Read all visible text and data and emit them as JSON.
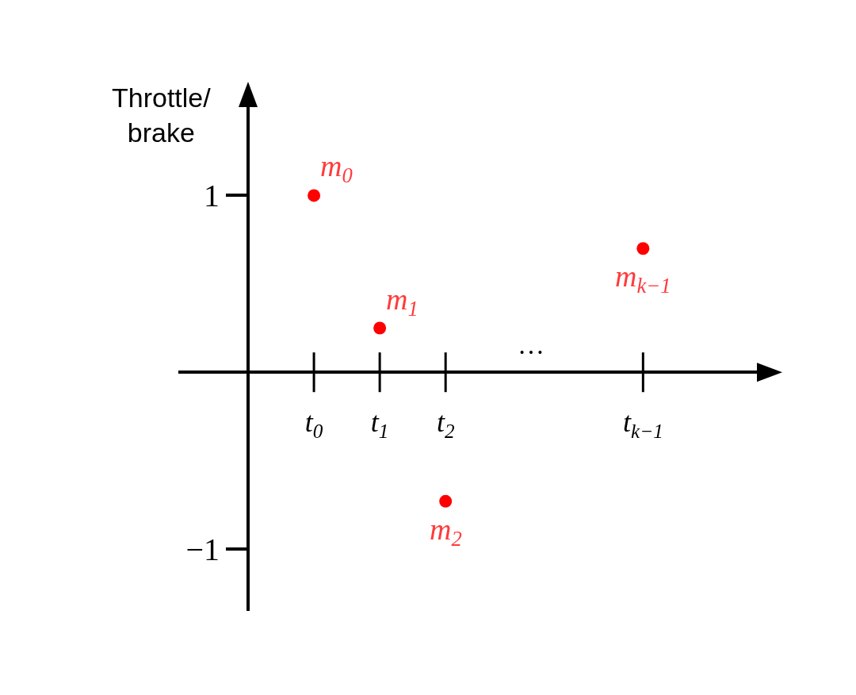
{
  "chart_data": {
    "type": "scatter",
    "ylabel": "Throttle/\nbrake",
    "categories": [
      "t$_{0}$",
      "t$_{1}$",
      "t$_{2}$",
      null,
      null,
      "t$_{k−1}$"
    ],
    "values": [
      1,
      0.25,
      -0.73,
      null,
      null,
      0.7
    ],
    "color": "#ff0000",
    "marker": "circle",
    "grid": false,
    "legend": false,
    "ylim": [
      -1.35,
      1.5
    ],
    "yticks": [
      1,
      {
        "value": -1,
        "label": "−1"
      }
    ],
    "annotations": [
      {
        "text": "m$_{0}$",
        "x": "t$_{0}$",
        "y": 1
      },
      {
        "text": "m$_{1}$",
        "x": "t$_{1}$",
        "y": 0.25
      },
      {
        "text": "m$_{2}$",
        "x": "t$_{2}$",
        "y": -0.73
      },
      {
        "text": "m$_{k−1}$",
        "x": "t$_{k−1}$",
        "y": 0.7
      },
      "…"
    ]
  }
}
